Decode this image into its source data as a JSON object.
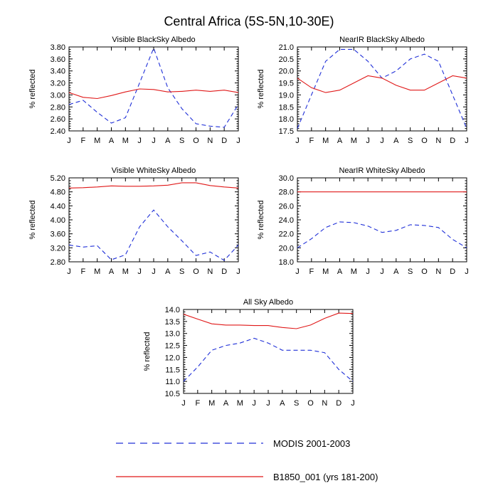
{
  "figure_title": "Central Africa (5S-5N,10-30E)",
  "legend": {
    "modis_label": "MODIS 2001-2003",
    "model_label": "B1850_001 (yrs 181-200)"
  },
  "colors": {
    "modis": "#2030d8",
    "model": "#e01818"
  },
  "chart_data": [
    {
      "type": "line",
      "title": "Visible BlackSky Albedo",
      "ylabel": "% reflected",
      "x": [
        "J",
        "F",
        "M",
        "A",
        "M",
        "J",
        "J",
        "A",
        "S",
        "O",
        "N",
        "D",
        "J"
      ],
      "ylim": [
        2.4,
        3.8
      ],
      "yticks": [
        "2.40",
        "2.60",
        "2.80",
        "3.00",
        "3.20",
        "3.40",
        "3.60",
        "3.80"
      ],
      "series": [
        {
          "name": "MODIS 2001-2003",
          "values": [
            2.84,
            2.91,
            2.71,
            2.53,
            2.62,
            3.2,
            3.78,
            3.12,
            2.77,
            2.52,
            2.48,
            2.46,
            2.84
          ]
        },
        {
          "name": "B1850_001 (yrs 181-200)",
          "values": [
            3.04,
            2.96,
            2.94,
            2.99,
            3.05,
            3.1,
            3.09,
            3.05,
            3.06,
            3.08,
            3.06,
            3.08,
            3.04
          ]
        }
      ]
    },
    {
      "type": "line",
      "title": "NearIR BlackSky Albedo",
      "ylabel": "% reflected",
      "x": [
        "J",
        "F",
        "M",
        "A",
        "M",
        "J",
        "J",
        "A",
        "S",
        "O",
        "N",
        "D",
        "J"
      ],
      "ylim": [
        17.5,
        21.0
      ],
      "yticks": [
        "17.5",
        "18.0",
        "18.5",
        "19.0",
        "19.5",
        "20.0",
        "20.5",
        "21.0"
      ],
      "series": [
        {
          "name": "MODIS 2001-2003",
          "values": [
            17.6,
            19.0,
            20.4,
            20.9,
            20.9,
            20.4,
            19.7,
            20.0,
            20.5,
            20.7,
            20.4,
            19.0,
            17.6
          ]
        },
        {
          "name": "B1850_001 (yrs 181-200)",
          "values": [
            19.7,
            19.3,
            19.1,
            19.2,
            19.5,
            19.8,
            19.7,
            19.4,
            19.2,
            19.2,
            19.5,
            19.8,
            19.7
          ]
        }
      ]
    },
    {
      "type": "line",
      "title": "Visible WhiteSky Albedo",
      "ylabel": "% reflected",
      "x": [
        "J",
        "F",
        "M",
        "A",
        "M",
        "J",
        "J",
        "A",
        "S",
        "O",
        "N",
        "D",
        "J"
      ],
      "ylim": [
        2.8,
        5.2
      ],
      "yticks": [
        "2.80",
        "3.20",
        "3.60",
        "4.00",
        "4.40",
        "4.80",
        "5.20"
      ],
      "series": [
        {
          "name": "MODIS 2001-2003",
          "values": [
            3.28,
            3.22,
            3.26,
            2.86,
            3.0,
            3.8,
            4.28,
            3.8,
            3.4,
            2.98,
            3.08,
            2.84,
            3.28
          ]
        },
        {
          "name": "B1850_001 (yrs 181-200)",
          "values": [
            4.91,
            4.92,
            4.94,
            4.97,
            4.96,
            4.96,
            4.97,
            4.99,
            5.06,
            5.06,
            4.98,
            4.94,
            4.91
          ]
        }
      ]
    },
    {
      "type": "line",
      "title": "NearIR WhiteSky Albedo",
      "ylabel": "% reflected",
      "x": [
        "J",
        "F",
        "M",
        "A",
        "M",
        "J",
        "J",
        "A",
        "S",
        "O",
        "N",
        "D",
        "J"
      ],
      "ylim": [
        18.0,
        30.0
      ],
      "yticks": [
        "18.0",
        "20.0",
        "22.0",
        "24.0",
        "26.0",
        "28.0",
        "30.0"
      ],
      "series": [
        {
          "name": "MODIS 2001-2003",
          "values": [
            20.0,
            21.3,
            22.9,
            23.7,
            23.6,
            23.1,
            22.2,
            22.5,
            23.3,
            23.2,
            22.9,
            21.2,
            20.0
          ]
        },
        {
          "name": "B1850_001 (yrs 181-200)",
          "values": [
            28.0,
            28.0,
            28.0,
            28.0,
            28.0,
            28.0,
            28.0,
            28.0,
            28.0,
            28.0,
            28.0,
            28.0,
            28.0
          ]
        }
      ]
    },
    {
      "type": "line",
      "title": "All Sky Albedo",
      "ylabel": "% reflected",
      "x": [
        "J",
        "F",
        "M",
        "A",
        "M",
        "J",
        "J",
        "A",
        "S",
        "O",
        "N",
        "D",
        "J"
      ],
      "ylim": [
        10.5,
        14.0
      ],
      "yticks": [
        "10.5",
        "11.0",
        "11.5",
        "12.0",
        "12.5",
        "13.0",
        "13.5",
        "14.0"
      ],
      "series": [
        {
          "name": "MODIS 2001-2003",
          "values": [
            11.0,
            11.6,
            12.3,
            12.5,
            12.6,
            12.8,
            12.6,
            12.3,
            12.3,
            12.3,
            12.2,
            11.5,
            11.0
          ]
        },
        {
          "name": "B1850_001 (yrs 181-200)",
          "values": [
            13.8,
            13.6,
            13.4,
            13.35,
            13.35,
            13.33,
            13.33,
            13.25,
            13.2,
            13.35,
            13.63,
            13.85,
            13.83
          ]
        }
      ]
    }
  ]
}
